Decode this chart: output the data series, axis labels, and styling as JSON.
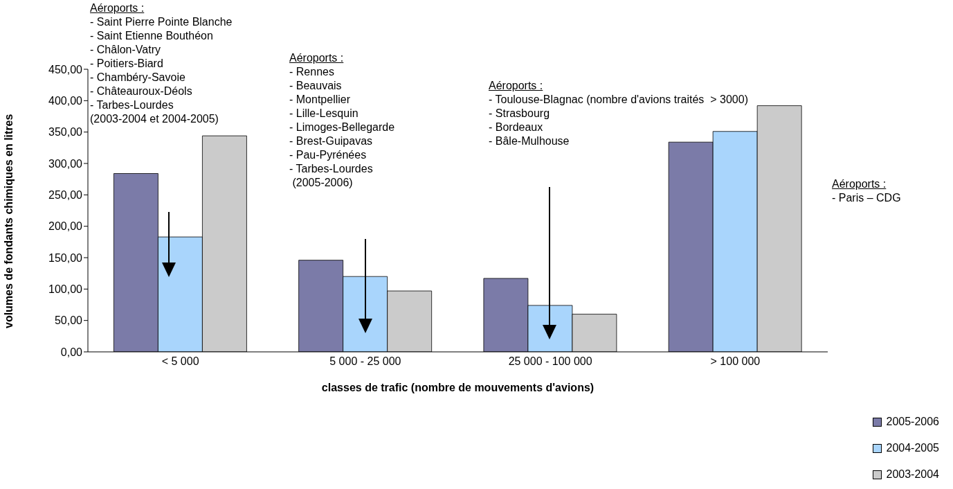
{
  "chart_data": {
    "type": "bar",
    "xlabel": "classes de trafic (nombre de mouvements d'avions)",
    "ylabel": "volumes de fondants chimiques en litres",
    "categories": [
      "< 5 000",
      "5 000 - 25 000",
      "25 000 - 100 000",
      "> 100 000"
    ],
    "series": [
      {
        "name": "2005-2006",
        "color": "#7b7ba8",
        "values": [
          284,
          146,
          117,
          334
        ]
      },
      {
        "name": "2004-2005",
        "color": "#a9d5fc",
        "values": [
          183,
          120,
          74,
          351
        ]
      },
      {
        "name": "2003-2004",
        "color": "#cbcbcb",
        "values": [
          344,
          97,
          60,
          392
        ]
      }
    ],
    "ylim": [
      0,
      450
    ],
    "yticks": [
      {
        "value": 0,
        "label": "0,00"
      },
      {
        "value": 50,
        "label": "50,00"
      },
      {
        "value": 100,
        "label": "100,00"
      },
      {
        "value": 150,
        "label": "150,00"
      },
      {
        "value": 200,
        "label": "200,00"
      },
      {
        "value": 250,
        "label": "250,00"
      },
      {
        "value": 300,
        "label": "300,00"
      },
      {
        "value": 350,
        "label": "350,00"
      },
      {
        "value": 400,
        "label": "400,00"
      },
      {
        "value": 450,
        "label": "450,00"
      }
    ],
    "grid": false,
    "legend": "bottom right",
    "annotations": [
      "Aéroports :\n- Saint Pierre Pointe Blanche\n- Saint Etienne Bouthéon\n- Châlon-Vatry\n- Poitiers-Biard\n- Chambéry-Savoie\n- Châteauroux-Déols\n- Tarbes-Lourdes\n(2003-2004 et 2004-2005)",
      "Aéroports :\n- Rennes\n- Beauvais\n- Montpellier\n- Lille-Lesquin\n- Limoges-Bellegarde\n- Brest-Guipavas\n- Pau-Pyrénées\n- Tarbes-Lourdes\n (2005-2006)",
      "Aéroports :\n- Toulouse-Blagnac (nombre d'avions traités  > 3000)\n- Strasbourg\n- Bordeaux\n- Bâle-Mulhouse",
      "Aéroports :\n- Paris – CDG"
    ]
  }
}
